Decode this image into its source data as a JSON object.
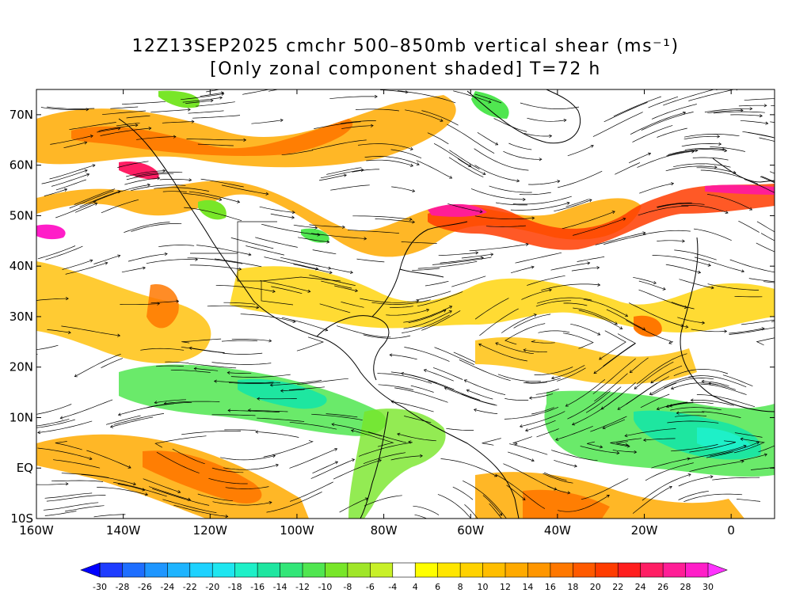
{
  "title": {
    "line1": "12Z13SEP2025 cmchr 500–850mb vertical shear (ms⁻¹)",
    "line2": "[Only zonal component shaded] T=72 h"
  },
  "map": {
    "lon_range": [
      -160,
      10
    ],
    "lat_range": [
      -10,
      75
    ],
    "lat_ticks": [
      {
        "value": 70,
        "label": "70N"
      },
      {
        "value": 60,
        "label": "60N"
      },
      {
        "value": 50,
        "label": "50N"
      },
      {
        "value": 40,
        "label": "40N"
      },
      {
        "value": 30,
        "label": "30N"
      },
      {
        "value": 20,
        "label": "20N"
      },
      {
        "value": 10,
        "label": "10N"
      },
      {
        "value": 0,
        "label": "EQ"
      },
      {
        "value": -10,
        "label": "10S"
      }
    ],
    "lon_ticks": [
      {
        "value": -160,
        "label": "160W"
      },
      {
        "value": -140,
        "label": "140W"
      },
      {
        "value": -120,
        "label": "120W"
      },
      {
        "value": -100,
        "label": "100W"
      },
      {
        "value": -80,
        "label": "80W"
      },
      {
        "value": -60,
        "label": "60W"
      },
      {
        "value": -40,
        "label": "40W"
      },
      {
        "value": -20,
        "label": "20W"
      },
      {
        "value": 0,
        "label": "0"
      }
    ]
  },
  "colorbar": {
    "labels": [
      "-30",
      "-28",
      "-26",
      "-24",
      "-22",
      "-20",
      "-18",
      "-16",
      "-14",
      "-12",
      "-10",
      "-8",
      "-6",
      "-4",
      "4",
      "6",
      "8",
      "10",
      "12",
      "14",
      "16",
      "18",
      "20",
      "22",
      "24",
      "26",
      "28",
      "30"
    ],
    "colors": [
      "#1e3cff",
      "#1e6eff",
      "#1e96ff",
      "#1eb4ff",
      "#1ed2ff",
      "#1ee6f0",
      "#1ef0c8",
      "#1ee6a0",
      "#32e678",
      "#50e650",
      "#78e628",
      "#a0e628",
      "#c8f028",
      "#ffffff",
      "#ffff00",
      "#ffe600",
      "#ffd200",
      "#ffbe00",
      "#ffaa00",
      "#ff9600",
      "#ff7800",
      "#ff5a00",
      "#ff3c00",
      "#ff1e1e",
      "#ff1e64",
      "#ff1e96",
      "#ff1ec8"
    ],
    "end_low_color": "#0000ff",
    "end_high_color": "#ff32ff"
  }
}
